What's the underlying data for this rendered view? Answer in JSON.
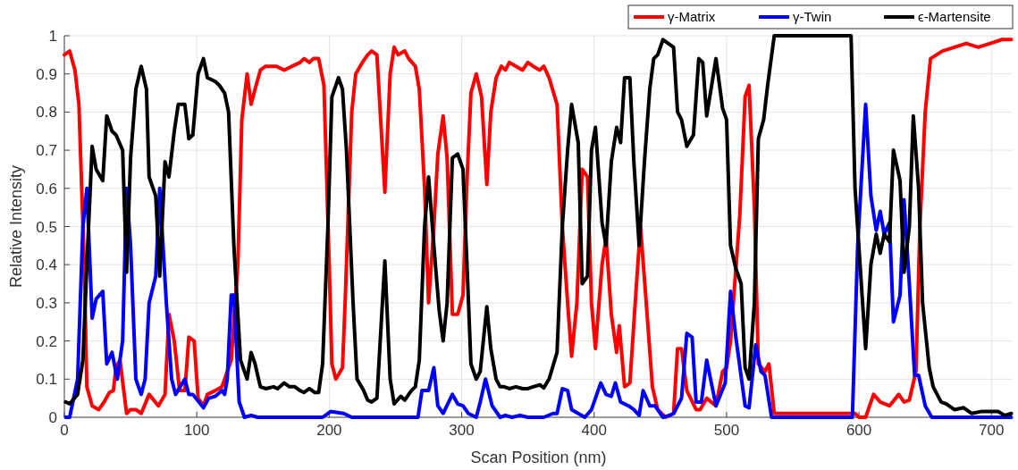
{
  "chart_data": {
    "type": "line",
    "xlabel": "Scan Position (nm)",
    "ylabel": "Relative Intensity",
    "xlim": [
      0,
      716
    ],
    "ylim": [
      0,
      1
    ],
    "xticks": [
      0,
      100,
      200,
      300,
      400,
      500,
      600,
      700
    ],
    "yticks": [
      0,
      {
        "value": 0.1,
        "label": "0.1"
      },
      {
        "value": 0.2,
        "label": "0.2"
      },
      {
        "value": 0.3,
        "label": "0.3"
      },
      {
        "value": 0.4,
        "label": "0.4"
      },
      {
        "value": 0.5,
        "label": "0.5"
      },
      {
        "value": 0.6,
        "label": "0.6"
      },
      {
        "value": 0.7,
        "label": "0.7"
      },
      {
        "value": 0.8,
        "label": "0.8"
      },
      {
        "value": 0.9,
        "label": "0.9"
      },
      1
    ],
    "grid": true,
    "legend": "top right",
    "marker": "none",
    "line_style": "solid",
    "series": [
      {
        "name": "γ-Matrix",
        "color": "#ff0000",
        "x": [
          0,
          4,
          8,
          11,
          15,
          17,
          21,
          26,
          30,
          34,
          37,
          39,
          42,
          47,
          50,
          54,
          58,
          64,
          71,
          76,
          79,
          83,
          87,
          91,
          94,
          98,
          101,
          105,
          108,
          114,
          119,
          121,
          126,
          131,
          134,
          138,
          141,
          144,
          148,
          152,
          160,
          166,
          172,
          178,
          181,
          185,
          188,
          192,
          196,
          200,
          202,
          205,
          210,
          212,
          217,
          220,
          225,
          229,
          232,
          236,
          242,
          246,
          249,
          252,
          257,
          260,
          265,
          268,
          272,
          275,
          279,
          282,
          286,
          289,
          293,
          297,
          301,
          304,
          307,
          311,
          315,
          319,
          322,
          326,
          330,
          333,
          336,
          341,
          346,
          350,
          354,
          359,
          362,
          366,
          372,
          376,
          380,
          383,
          387,
          391,
          395,
          398,
          401,
          406,
          409,
          413,
          417,
          419,
          423,
          427,
          432,
          435,
          440,
          444,
          448,
          454,
          460,
          463,
          466,
          470,
          477,
          480,
          485,
          492,
          497,
          500,
          503,
          510,
          514,
          517,
          521,
          524,
          529,
          532,
          536,
          540,
          597,
          600,
          605,
          611,
          616,
          623,
          630,
          634,
          638,
          643,
          646,
          650,
          654,
          663,
          672,
          681,
          690,
          699,
          708,
          715
        ],
        "values": [
          0.95,
          0.96,
          0.91,
          0.82,
          0.4,
          0.08,
          0.03,
          0.02,
          0.04,
          0.065,
          0.07,
          0.13,
          0.15,
          0.01,
          0.02,
          0.02,
          0.01,
          0.06,
          0.03,
          0.06,
          0.27,
          0.2,
          0.07,
          0.07,
          0.21,
          0.2,
          0.05,
          0.03,
          0.06,
          0.07,
          0.08,
          0.1,
          0.15,
          0.4,
          0.78,
          0.9,
          0.82,
          0.86,
          0.91,
          0.92,
          0.92,
          0.91,
          0.92,
          0.93,
          0.94,
          0.93,
          0.94,
          0.94,
          0.87,
          0.4,
          0.14,
          0.1,
          0.13,
          0.3,
          0.8,
          0.9,
          0.93,
          0.95,
          0.96,
          0.95,
          0.59,
          0.9,
          0.97,
          0.95,
          0.96,
          0.94,
          0.92,
          0.86,
          0.6,
          0.3,
          0.5,
          0.69,
          0.79,
          0.68,
          0.27,
          0.27,
          0.32,
          0.62,
          0.85,
          0.9,
          0.84,
          0.61,
          0.8,
          0.89,
          0.92,
          0.91,
          0.93,
          0.92,
          0.91,
          0.93,
          0.92,
          0.91,
          0.92,
          0.89,
          0.82,
          0.5,
          0.3,
          0.16,
          0.3,
          0.65,
          0.63,
          0.3,
          0.18,
          0.4,
          0.47,
          0.27,
          0.17,
          0.24,
          0.08,
          0.09,
          0.35,
          0.5,
          0.27,
          0.08,
          0.02,
          0,
          0.01,
          0.18,
          0.18,
          0.07,
          0.02,
          0.02,
          0.05,
          0.03,
          0.12,
          0.13,
          0.2,
          0.53,
          0.84,
          0.87,
          0.55,
          0.14,
          0.12,
          0.14,
          0.01,
          0.01,
          0.01,
          0,
          0,
          0.06,
          0.04,
          0.03,
          0.06,
          0.04,
          0.045,
          0.12,
          0.5,
          0.8,
          0.94,
          0.96,
          0.97,
          0.98,
          0.97,
          0.98,
          0.99,
          0.99
        ]
      },
      {
        "name": "γ-Twin",
        "color": "#0000ff",
        "x": [
          1,
          4,
          10,
          14,
          17,
          21,
          24,
          29,
          32,
          36,
          40,
          44,
          47,
          50,
          54,
          58,
          61,
          64,
          69,
          72,
          77,
          81,
          84,
          91,
          94,
          97,
          105,
          109,
          114,
          119,
          121,
          123,
          126,
          128,
          132,
          136,
          141,
          146,
          195,
          201,
          211,
          217,
          267,
          270,
          275,
          279,
          282,
          286,
          293,
          297,
          301,
          305,
          311,
          314,
          318,
          323,
          329,
          333,
          338,
          344,
          350,
          362,
          369,
          372,
          376,
          380,
          383,
          388,
          393,
          398,
          405,
          409,
          413,
          416,
          420,
          426,
          430,
          434,
          437,
          442,
          446,
          452,
          457,
          460,
          466,
          470,
          474,
          477,
          481,
          485,
          492,
          499,
          503,
          507,
          514,
          517,
          522,
          526,
          529,
          534,
          595,
          599,
          605,
          609,
          613,
          616,
          619,
          623,
          626,
          631,
          634,
          638,
          642,
          645,
          650,
          655,
          715
        ],
        "values": [
          0,
          0,
          0.1,
          0.5,
          0.6,
          0.26,
          0.31,
          0.33,
          0.14,
          0.17,
          0.1,
          0.2,
          0.6,
          0.45,
          0.1,
          0.06,
          0.1,
          0.3,
          0.37,
          0.6,
          0.3,
          0.1,
          0.06,
          0.1,
          0.06,
          0.06,
          0.025,
          0.05,
          0.055,
          0.07,
          0.06,
          0.1,
          0.32,
          0.32,
          0.04,
          0,
          0.005,
          0,
          0,
          0.015,
          0.01,
          0,
          0,
          0.07,
          0.07,
          0.13,
          0.03,
          0.01,
          0.06,
          0.035,
          0.03,
          0.01,
          0,
          0.04,
          0.1,
          0.03,
          0,
          0.005,
          0,
          0.005,
          0,
          0,
          0.01,
          0.01,
          0.075,
          0.07,
          0.02,
          0.01,
          0,
          0.02,
          0.09,
          0.06,
          0.055,
          0.09,
          0.04,
          0.03,
          0.02,
          0.005,
          0.07,
          0.03,
          0.03,
          0,
          0.005,
          0.01,
          0.05,
          0.22,
          0.21,
          0.04,
          0.04,
          0.15,
          0.03,
          0.09,
          0.33,
          0.21,
          0.03,
          0.025,
          0.19,
          0.12,
          0.11,
          0,
          0,
          0.45,
          0.82,
          0.58,
          0.49,
          0.54,
          0.48,
          0.51,
          0.25,
          0.32,
          0.57,
          0.35,
          0.11,
          0.11,
          0.03,
          0,
          0
        ]
      },
      {
        "name": "ϵ-Martensite",
        "color": "#000000",
        "x": [
          1,
          4,
          10,
          14,
          17,
          21,
          24,
          29,
          32,
          36,
          39,
          44,
          47,
          50,
          54,
          58,
          62,
          64,
          69,
          72,
          76,
          79,
          83,
          86,
          91,
          94,
          97,
          101,
          105,
          108,
          114,
          117,
          121,
          124,
          128,
          133,
          138,
          141,
          144,
          148,
          152,
          158,
          161,
          166,
          170,
          174,
          178,
          181,
          185,
          189,
          192,
          195,
          199,
          202,
          207,
          210,
          213,
          218,
          221,
          226,
          229,
          232,
          236,
          242,
          246,
          249,
          254,
          257,
          262,
          265,
          268,
          272,
          275,
          279,
          283,
          286,
          289,
          293,
          297,
          301,
          304,
          307,
          311,
          314,
          319,
          322,
          326,
          329,
          332,
          336,
          341,
          346,
          350,
          354,
          359,
          362,
          366,
          372,
          376,
          380,
          383,
          388,
          391,
          395,
          398,
          401,
          406,
          409,
          413,
          417,
          420,
          423,
          427,
          430,
          434,
          438,
          442,
          445,
          448,
          452,
          456,
          460,
          463,
          466,
          470,
          475,
          479,
          482,
          485,
          492,
          497,
          500,
          503,
          507,
          511,
          514,
          517,
          521,
          524,
          528,
          531,
          536,
          540,
          594,
          597,
          605,
          609,
          613,
          616,
          619,
          623,
          626,
          631,
          634,
          638,
          641,
          645,
          648,
          653,
          656,
          662,
          666,
          672,
          679,
          685,
          692,
          699,
          705,
          710,
          715
        ],
        "values": [
          0.04,
          0.035,
          0.06,
          0.15,
          0.4,
          0.71,
          0.65,
          0.62,
          0.79,
          0.75,
          0.74,
          0.7,
          0.38,
          0.68,
          0.86,
          0.92,
          0.86,
          0.63,
          0.58,
          0.37,
          0.67,
          0.63,
          0.75,
          0.82,
          0.82,
          0.73,
          0.74,
          0.9,
          0.94,
          0.89,
          0.88,
          0.87,
          0.85,
          0.8,
          0.45,
          0.15,
          0.1,
          0.17,
          0.14,
          0.08,
          0.075,
          0.08,
          0.075,
          0.09,
          0.08,
          0.08,
          0.07,
          0.065,
          0.075,
          0.065,
          0.065,
          0.14,
          0.5,
          0.84,
          0.89,
          0.86,
          0.7,
          0.3,
          0.1,
          0.07,
          0.045,
          0.04,
          0.05,
          0.41,
          0.1,
          0.035,
          0.055,
          0.045,
          0.07,
          0.08,
          0.15,
          0.5,
          0.63,
          0.45,
          0.28,
          0.2,
          0.3,
          0.68,
          0.69,
          0.65,
          0.4,
          0.14,
          0.1,
          0.12,
          0.29,
          0.18,
          0.1,
          0.08,
          0.08,
          0.075,
          0.08,
          0.075,
          0.075,
          0.08,
          0.085,
          0.077,
          0.1,
          0.17,
          0.5,
          0.7,
          0.82,
          0.72,
          0.35,
          0.37,
          0.7,
          0.76,
          0.51,
          0.45,
          0.67,
          0.76,
          0.72,
          0.89,
          0.89,
          0.67,
          0.45,
          0.67,
          0.86,
          0.94,
          0.95,
          0.99,
          0.98,
          0.97,
          0.8,
          0.78,
          0.71,
          0.74,
          0.94,
          0.93,
          0.79,
          0.94,
          0.81,
          0.78,
          0.45,
          0.39,
          0.35,
          0.13,
          0.1,
          0.3,
          0.73,
          0.78,
          0.87,
          1,
          1,
          1,
          0.6,
          0.18,
          0.4,
          0.48,
          0.43,
          0.48,
          0.46,
          0.7,
          0.62,
          0.38,
          0.5,
          0.79,
          0.6,
          0.3,
          0.13,
          0.08,
          0.04,
          0.035,
          0.02,
          0.025,
          0.01,
          0.015,
          0.015,
          0.015,
          0.005,
          0.01
        ]
      }
    ]
  }
}
